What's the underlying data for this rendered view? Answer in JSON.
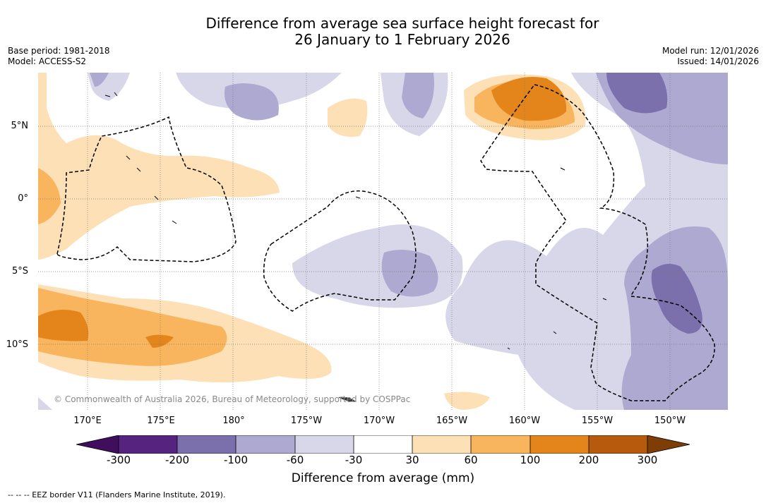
{
  "title": {
    "line1": "Difference from average sea surface height forecast for",
    "line2": "26 January to 1 February 2026"
  },
  "meta_left": {
    "base_period": "Base period: 1981-2018",
    "model": "Model: ACCESS-S2"
  },
  "meta_right": {
    "model_run": "Model run: 12/01/2026",
    "issued": "Issued: 14/01/2026"
  },
  "lat_labels": [
    "5°N",
    "0°",
    "5°S",
    "10°S"
  ],
  "lon_labels": [
    "170°E",
    "175°E",
    "180°",
    "175°W",
    "170°W",
    "165°W",
    "160°W",
    "155°W",
    "150°W"
  ],
  "copyright": "© Commonwealth of Australia 2026, Bureau of Meteorology, supported by COSPPac",
  "colorbar": {
    "ticks": [
      "-300",
      "-200",
      "-100",
      "-60",
      "-30",
      "30",
      "60",
      "100",
      "200",
      "300"
    ],
    "title": "Difference from average (mm)",
    "colors": [
      "#3f0f5e",
      "#56237f",
      "#7b6fac",
      "#aea9d0",
      "#d8d7e9",
      "#ffffff",
      "#fde0b6",
      "#f9b45e",
      "#e3851b",
      "#b65b0d",
      "#7e3c06"
    ]
  },
  "footnote": "-- -- -- EEZ border V11 (Flanders Marine Institute, 2019)."
}
